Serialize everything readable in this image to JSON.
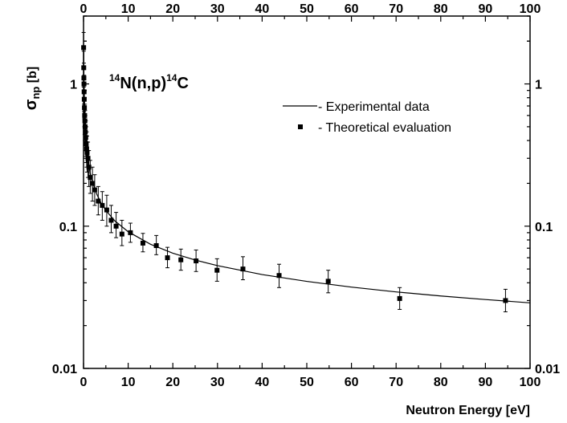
{
  "chart_data": {
    "type": "scatter",
    "title": "",
    "annotation": {
      "mass_a": "14",
      "mid": "N(n,p)",
      "mass_b": "14",
      "end": "C"
    },
    "xlabel": "Neutron Energy [eV]",
    "ylabel": {
      "main": "σ",
      "sub": "np",
      "unit": " [b]"
    },
    "xlim": [
      0,
      100
    ],
    "ylim": [
      0.01,
      3
    ],
    "yscale": "log",
    "grid": false,
    "legend_position": "top-right",
    "x_ticks": [
      "0",
      "10",
      "20",
      "30",
      "40",
      "50",
      "60",
      "70",
      "80",
      "90",
      "100"
    ],
    "y_ticks": [
      {
        "value": 0.01,
        "label": "0.01"
      },
      {
        "value": 0.1,
        "label": "0.1"
      },
      {
        "value": 1,
        "label": "1"
      }
    ],
    "series": [
      {
        "name": "- Experimental data",
        "kind": "line",
        "x": [
          0.025,
          0.05,
          0.1,
          0.2,
          0.3,
          0.5,
          0.7,
          1,
          1.5,
          2,
          3,
          4,
          5,
          7,
          10,
          15,
          20,
          25,
          30,
          40,
          50,
          60,
          70,
          80,
          90,
          100
        ],
        "y": [
          1.83,
          1.29,
          0.914,
          0.646,
          0.528,
          0.409,
          0.345,
          0.289,
          0.236,
          0.204,
          0.167,
          0.144,
          0.129,
          0.109,
          0.0914,
          0.0746,
          0.0646,
          0.0578,
          0.0528,
          0.0457,
          0.0409,
          0.0373,
          0.0345,
          0.0323,
          0.0305,
          0.0289
        ]
      },
      {
        "name": "- Theoretical evaluation",
        "kind": "points",
        "x": [
          0.025,
          0.05,
          0.08,
          0.1,
          0.13,
          0.16,
          0.2,
          0.25,
          0.3,
          0.35,
          0.4,
          0.5,
          0.6,
          0.7,
          0.8,
          1.0,
          1.2,
          1.5,
          2.0,
          2.5,
          3.3,
          4.2,
          5.2,
          6.2,
          7.3,
          8.6,
          10.5,
          13.3,
          16.3,
          18.8,
          21.8,
          25.2,
          29.9,
          35.7,
          43.8,
          54.8,
          70.8,
          94.5
        ],
        "y": [
          1.8,
          1.3,
          1.1,
          1.0,
          0.88,
          0.78,
          0.68,
          0.6,
          0.55,
          0.5,
          0.46,
          0.42,
          0.38,
          0.35,
          0.33,
          0.3,
          0.26,
          0.22,
          0.2,
          0.18,
          0.15,
          0.14,
          0.13,
          0.11,
          0.1,
          0.088,
          0.09,
          0.076,
          0.073,
          0.06,
          0.058,
          0.057,
          0.049,
          0.05,
          0.045,
          0.041,
          0.031,
          0.03
        ],
        "err_lo": [
          1.3,
          0.95,
          0.8,
          0.72,
          0.64,
          0.57,
          0.5,
          0.44,
          0.4,
          0.37,
          0.34,
          0.31,
          0.28,
          0.26,
          0.24,
          0.22,
          0.19,
          0.17,
          0.15,
          0.14,
          0.12,
          0.11,
          0.1,
          0.09,
          0.083,
          0.073,
          0.077,
          0.066,
          0.063,
          0.051,
          0.049,
          0.048,
          0.041,
          0.042,
          0.037,
          0.034,
          0.026,
          0.025
        ],
        "err_hi": [
          2.3,
          1.7,
          1.4,
          1.3,
          1.15,
          1.0,
          0.88,
          0.78,
          0.72,
          0.65,
          0.6,
          0.55,
          0.5,
          0.46,
          0.43,
          0.39,
          0.34,
          0.29,
          0.26,
          0.23,
          0.19,
          0.175,
          0.165,
          0.14,
          0.125,
          0.11,
          0.105,
          0.089,
          0.086,
          0.071,
          0.069,
          0.068,
          0.059,
          0.061,
          0.054,
          0.049,
          0.037,
          0.036
        ]
      }
    ]
  }
}
